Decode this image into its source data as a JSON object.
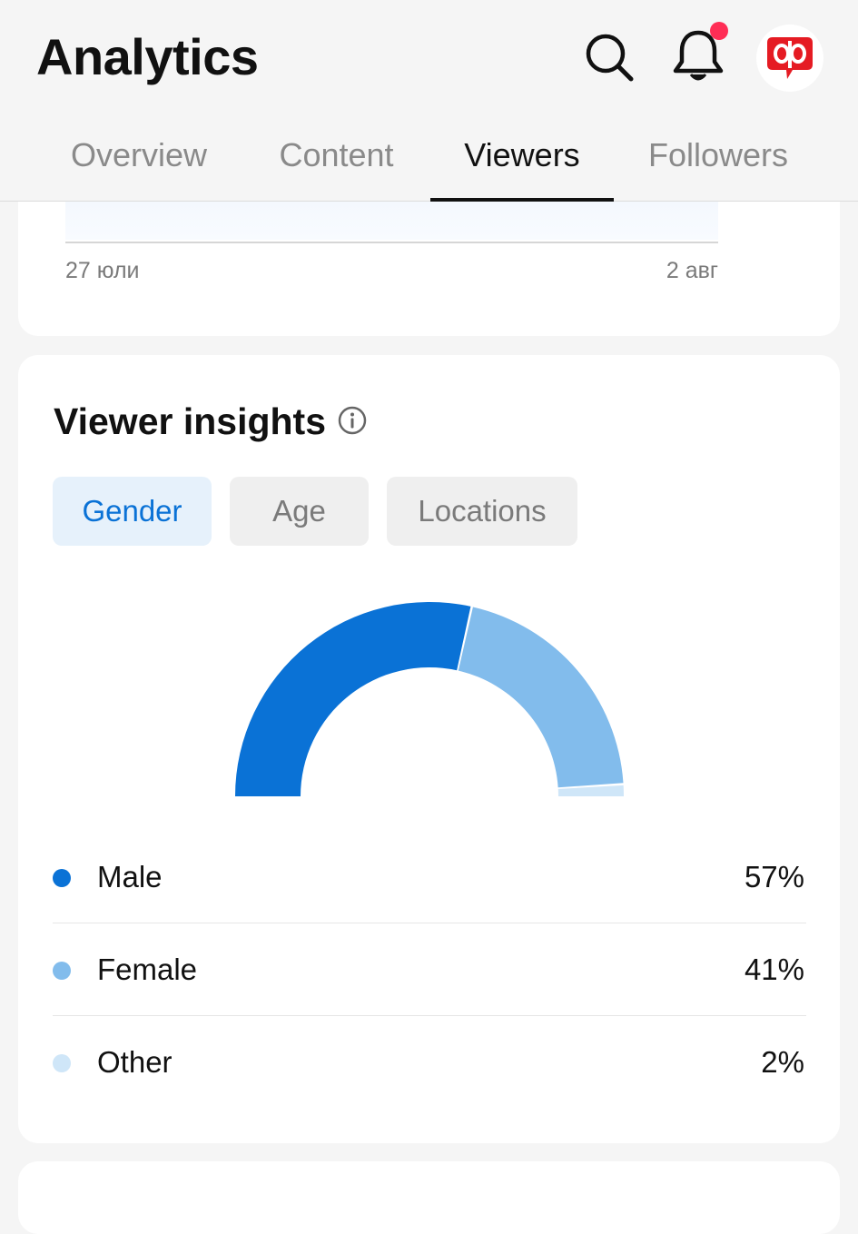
{
  "header": {
    "title": "Analytics",
    "icons": {
      "search": "search-icon",
      "notifications": "bell-icon",
      "avatar": "brand-logo-avatar"
    },
    "notification_dot_color": "#ff2d55"
  },
  "tabs": [
    {
      "label": "Overview",
      "active": false
    },
    {
      "label": "Content",
      "active": false
    },
    {
      "label": "Viewers",
      "active": true
    },
    {
      "label": "Followers",
      "active": false
    }
  ],
  "trend_chart": {
    "x_start_label": "27 юли",
    "x_end_label": "2 авг"
  },
  "insights": {
    "title": "Viewer insights",
    "info_icon": "info-icon",
    "filters": [
      {
        "label": "Gender",
        "active": true
      },
      {
        "label": "Age",
        "active": false
      },
      {
        "label": "Locations",
        "active": false
      }
    ]
  },
  "chart_data": {
    "type": "pie",
    "style": "semi-donut",
    "categories": [
      "Male",
      "Female",
      "Other"
    ],
    "values": [
      57,
      41,
      2
    ],
    "value_labels": [
      "57%",
      "41%",
      "2%"
    ],
    "colors": [
      "#0a72d6",
      "#82bcec",
      "#cfe6f8"
    ],
    "legend_placement": "bottom"
  }
}
